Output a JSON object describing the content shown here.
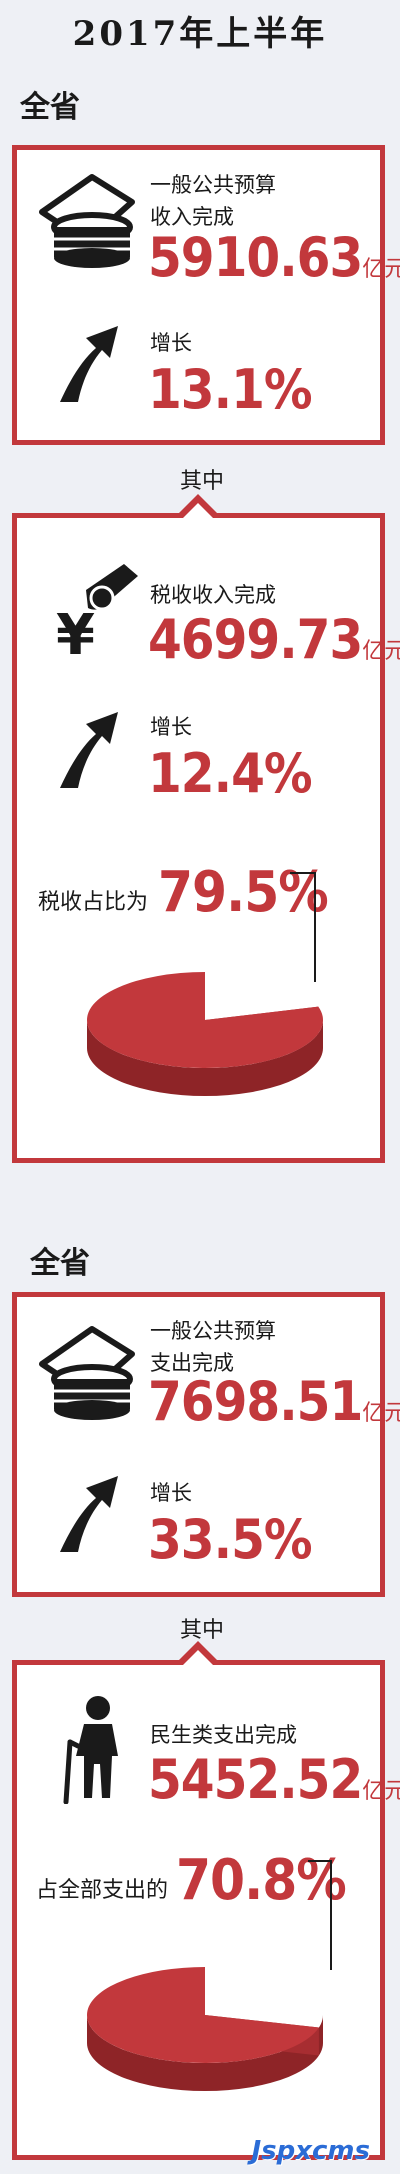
{
  "title": "2017年上半年",
  "section1": {
    "label": "全省",
    "budget_label_line1": "一般公共预算",
    "budget_label_line2": "收入完成",
    "value": "5910.63",
    "unit": "亿元",
    "growth_label": "增长",
    "growth_value": "13.1%"
  },
  "sub1": {
    "connector": "其中",
    "tax_label": "税收收入完成",
    "tax_value": "4699.73",
    "unit": "亿元",
    "growth_label": "增长",
    "growth_value": "12.4%",
    "share_label": "税收占比为",
    "share_value": "79.5%",
    "share_fraction": 0.795
  },
  "section2": {
    "label": "全省",
    "budget_label_line1": "一般公共预算",
    "budget_label_line2": "支出完成",
    "value": "7698.51",
    "unit": "亿元",
    "growth_label": "增长",
    "growth_value": "33.5%"
  },
  "sub2": {
    "connector": "其中",
    "livelihood_label": "民生类支出完成",
    "livelihood_value": "5452.52",
    "unit": "亿元",
    "share_label": "占全部支出的",
    "share_value": "70.8%",
    "share_fraction": 0.708
  },
  "watermark": "Jspxcms",
  "colors": {
    "accent": "#c2383c",
    "background": "#eef0f5"
  }
}
